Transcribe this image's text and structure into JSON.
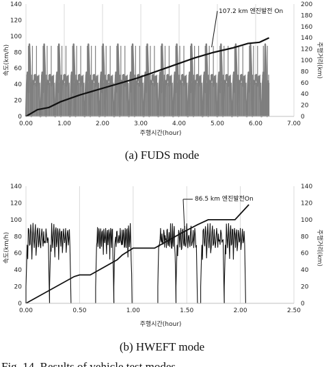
{
  "figure_caption": "Fig. 14. Results of vehicle test modes",
  "chart_data": [
    {
      "type": "line",
      "caption": "(a) FUDS mode",
      "xlabel": "주행시간(hour)",
      "ylabel_left": "속도(km/h)",
      "ylabel_right": "주행거리(km)",
      "xlim": [
        0,
        7
      ],
      "xticks": [
        "0.00",
        "1.00",
        "2.00",
        "3.00",
        "4.00",
        "5.00",
        "6.00",
        "7.00"
      ],
      "ylim_left": [
        0,
        140
      ],
      "yticks_left": [
        "0",
        "20",
        "40",
        "60",
        "80",
        "100",
        "120",
        "140"
      ],
      "ylim_right": [
        0,
        200
      ],
      "yticks_right": [
        "0",
        "20",
        "40",
        "60",
        "80",
        "100",
        "120",
        "140",
        "160",
        "180",
        "200"
      ],
      "grid": "vertical",
      "annotation": {
        "text": "107.2 km 엔진발전 On",
        "x": 4.85,
        "y_distance": 128
      },
      "speed_series": {
        "name": "속도(km/h)",
        "color": "#7f7f7f",
        "cycle_period_h": 0.385,
        "cycles": 17,
        "profile": [
          [
            0,
            0
          ],
          [
            0.02,
            40
          ],
          [
            0.04,
            55
          ],
          [
            0.07,
            30
          ],
          [
            0.09,
            90
          ],
          [
            0.11,
            62
          ],
          [
            0.14,
            0
          ],
          [
            0.17,
            45
          ],
          [
            0.2,
            40
          ],
          [
            0.24,
            52
          ],
          [
            0.28,
            38
          ],
          [
            0.31,
            50
          ],
          [
            0.33,
            40
          ],
          [
            0.37,
            0
          ],
          [
            0.385,
            0
          ]
        ],
        "end_h": 6.35
      },
      "distance_series": {
        "name": "주행거리(km)",
        "color": "#111111",
        "x": [
          0,
          0.15,
          0.3,
          0.6,
          0.9,
          1.4,
          1.9,
          2.4,
          2.9,
          3.4,
          3.9,
          4.4,
          4.9,
          5.4,
          5.8,
          6.1,
          6.35
        ],
        "y": [
          0,
          6,
          12,
          16,
          26,
          38,
          48,
          58,
          68,
          80,
          92,
          104,
          114,
          122,
          130,
          132,
          140
        ]
      }
    },
    {
      "type": "line",
      "caption": "(b) HWEFT mode",
      "xlabel": "주행시간(hour)",
      "ylabel_left": "속도(km/h)",
      "ylabel_right": "주행거리(km)",
      "xlim": [
        0,
        2.5
      ],
      "xticks": [
        "0.00",
        "0.50",
        "1.00",
        "1.50",
        "2.00",
        "2.50"
      ],
      "ylim_left": [
        0,
        140
      ],
      "yticks_left": [
        "0",
        "20",
        "40",
        "60",
        "80",
        "100",
        "120",
        "140"
      ],
      "ylim_right": [
        0,
        140
      ],
      "yticks_right": [
        "0",
        "20",
        "40",
        "60",
        "80",
        "100",
        "120",
        "140"
      ],
      "grid": "vertical",
      "annotation": {
        "text": "86.5  km 엔진발전On",
        "x": 1.48,
        "y_distance": 86.5
      },
      "speed_series": {
        "name": "속도(km/h)",
        "color": "#111111",
        "blocks": [
          [
            0.0,
            0.22
          ],
          [
            0.22,
            0.42
          ],
          [
            0.65,
            0.82
          ],
          [
            0.82,
            0.99
          ],
          [
            1.23,
            1.4
          ],
          [
            1.4,
            1.6
          ],
          [
            1.63,
            1.85
          ],
          [
            1.85,
            2.05
          ]
        ],
        "gaps": [
          [
            0.45,
            0.58
          ],
          [
            1.02,
            1.2
          ],
          [
            1.6,
            1.63
          ]
        ]
      },
      "distance_series": {
        "name": "주행거리(km)",
        "color": "#111111",
        "x": [
          0,
          0.45,
          0.5,
          0.6,
          0.85,
          0.9,
          1.0,
          1.2,
          1.45,
          1.6,
          1.7,
          1.95,
          2.08
        ],
        "y": [
          0,
          32,
          34,
          34,
          52,
          58,
          66,
          66,
          84,
          94,
          100,
          100,
          118
        ]
      }
    }
  ]
}
